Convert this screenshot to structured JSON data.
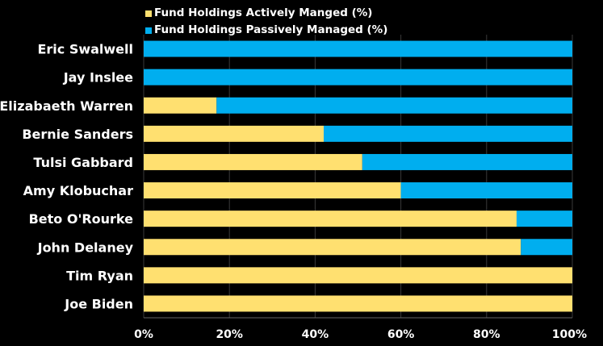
{
  "chart_data": {
    "type": "bar",
    "orientation": "horizontal",
    "stacked": true,
    "categories": [
      "Eric Swalwell",
      "Jay Inslee",
      "Elizabaeth Warren",
      "Bernie Sanders",
      "Tulsi Gabbard",
      "Amy Klobuchar",
      "Beto O'Rourke",
      "John Delaney",
      "Tim Ryan",
      "Joe Biden"
    ],
    "series": [
      {
        "name": "Fund Holdings Actively Manged (%)",
        "color": "#FFE070",
        "values": [
          0,
          0,
          17,
          42,
          51,
          60,
          87,
          88,
          100,
          100
        ]
      },
      {
        "name": "Fund Holdings Passively Managed (%)",
        "color": "#00AEEF",
        "values": [
          100,
          100,
          83,
          58,
          49,
          40,
          13,
          12,
          0,
          0
        ]
      }
    ],
    "xlim": [
      0,
      100
    ],
    "xticks": [
      "0%",
      "20%",
      "40%",
      "60%",
      "80%",
      "100%"
    ],
    "legend_position": "top-left",
    "grid": true,
    "background": "#000000"
  }
}
